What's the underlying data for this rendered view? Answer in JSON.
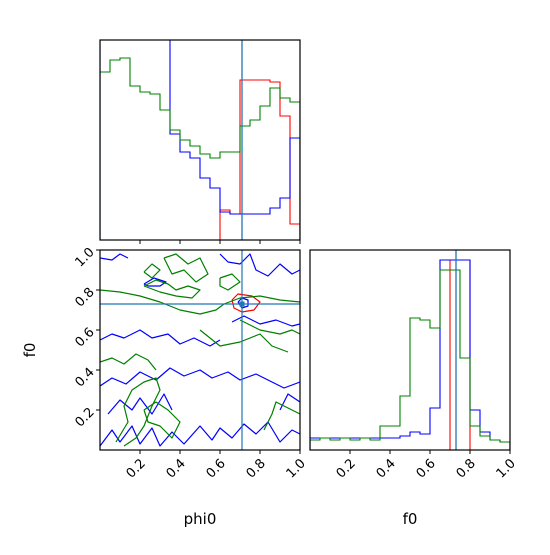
{
  "chart_data": {
    "type": "corner",
    "parameters": [
      "phi0",
      "f0"
    ],
    "axis_labels": {
      "x_bottom_left": "phi0",
      "x_bottom_right": "f0",
      "y_left": "f0"
    },
    "xlim": [
      0,
      1.0
    ],
    "ylim": [
      0,
      1.0
    ],
    "tick_labels": [
      "0.2",
      "0.4",
      "0.6",
      "0.8",
      "1.0"
    ],
    "colors": {
      "red": "#ff0000",
      "blue": "#0000ff",
      "green": "#008000",
      "truth": "#1f77b4",
      "frame": "#000000"
    },
    "truth": {
      "phi0": 0.71,
      "f0": 0.73
    },
    "phi0_hist": {
      "bin_edges": [
        0,
        0.05,
        0.1,
        0.15,
        0.2,
        0.25,
        0.3,
        0.35,
        0.4,
        0.45,
        0.5,
        0.55,
        0.6,
        0.65,
        0.7,
        0.75,
        0.8,
        0.85,
        0.9,
        0.95,
        1.0
      ],
      "series": [
        {
          "color": "red",
          "counts": [
            0,
            0,
            0,
            0,
            0,
            0,
            0,
            0,
            0,
            0,
            0,
            0,
            0.15,
            0.13,
            0.8,
            0.8,
            0.8,
            0.79,
            0.62,
            0.08
          ]
        },
        {
          "color": "blue",
          "counts": [
            1.2,
            1.2,
            1.2,
            1.2,
            1.2,
            1.2,
            1.2,
            0.53,
            0.44,
            0.41,
            0.31,
            0.26,
            0.14,
            0.13,
            0.13,
            0.13,
            0.13,
            0.16,
            0.21,
            0.51
          ]
        },
        {
          "color": "green",
          "counts": [
            0.84,
            0.9,
            0.91,
            0.77,
            0.74,
            0.73,
            0.65,
            0.55,
            0.5,
            0.47,
            0.43,
            0.41,
            0.44,
            0.44,
            0.57,
            0.6,
            0.67,
            0.76,
            0.71,
            0.69
          ]
        }
      ]
    },
    "f0_hist": {
      "bin_edges": [
        0,
        0.05,
        0.1,
        0.15,
        0.2,
        0.25,
        0.3,
        0.35,
        0.4,
        0.45,
        0.5,
        0.55,
        0.6,
        0.65,
        0.7,
        0.75,
        0.8,
        0.85,
        0.9,
        0.95,
        1.0
      ],
      "series": [
        {
          "color": "red",
          "counts": [
            0,
            0,
            0,
            0,
            0,
            0,
            0,
            0,
            0,
            0,
            0,
            0,
            0,
            0,
            0.95,
            0.95,
            0,
            0,
            0,
            0
          ]
        },
        {
          "color": "blue",
          "counts": [
            0.06,
            0.06,
            0.06,
            0.06,
            0.06,
            0.06,
            0.06,
            0.06,
            0.06,
            0.07,
            0.09,
            0.08,
            0.21,
            0.95,
            0.95,
            0.95,
            0.2,
            0.09,
            0.05,
            0.04
          ]
        },
        {
          "color": "green",
          "counts": [
            0.05,
            0.06,
            0.05,
            0.06,
            0.05,
            0.06,
            0.05,
            0.12,
            0.12,
            0.27,
            0.66,
            0.65,
            0.61,
            0.9,
            0.9,
            0.46,
            0.12,
            0.07,
            0.05,
            0.04
          ]
        }
      ]
    },
    "contours_2d": [
      {
        "color": "red",
        "paths": [
          [
            [
              0.66,
              0.75
            ],
            [
              0.69,
              0.78
            ],
            [
              0.76,
              0.77
            ],
            [
              0.8,
              0.74
            ],
            [
              0.77,
              0.7
            ],
            [
              0.71,
              0.69
            ],
            [
              0.67,
              0.71
            ],
            [
              0.66,
              0.75
            ]
          ]
        ]
      },
      {
        "color": "blue",
        "paths": [
          [
            [
              0.22,
              0.83
            ],
            [
              0.27,
              0.86
            ],
            [
              0.33,
              0.84
            ],
            [
              0.3,
              0.82
            ],
            [
              0.24,
              0.82
            ],
            [
              0.22,
              0.83
            ]
          ],
          [
            [
              0.69,
              0.74
            ],
            [
              0.71,
              0.76
            ],
            [
              0.74,
              0.75
            ],
            [
              0.74,
              0.72
            ],
            [
              0.71,
              0.71
            ],
            [
              0.69,
              0.74
            ]
          ],
          [
            [
              0.0,
              0.96
            ],
            [
              0.06,
              0.95
            ],
            [
              0.1,
              0.98
            ],
            [
              0.14,
              0.96
            ]
          ],
          [
            [
              0.6,
              0.98
            ],
            [
              0.64,
              0.94
            ],
            [
              0.7,
              0.93
            ],
            [
              0.75,
              0.98
            ],
            [
              0.78,
              0.9
            ],
            [
              0.84,
              0.87
            ],
            [
              0.9,
              0.93
            ],
            [
              0.96,
              0.88
            ],
            [
              1.0,
              0.9
            ]
          ],
          [
            [
              0.0,
              0.55
            ],
            [
              0.06,
              0.58
            ],
            [
              0.12,
              0.56
            ],
            [
              0.2,
              0.6
            ],
            [
              0.26,
              0.56
            ],
            [
              0.34,
              0.58
            ],
            [
              0.4,
              0.53
            ],
            [
              0.47,
              0.56
            ],
            [
              0.55,
              0.52
            ],
            [
              0.6,
              0.55
            ]
          ],
          [
            [
              0.66,
              0.64
            ],
            [
              0.72,
              0.67
            ],
            [
              0.8,
              0.63
            ],
            [
              0.88,
              0.65
            ],
            [
              0.96,
              0.62
            ],
            [
              1.0,
              0.63
            ]
          ],
          [
            [
              0.0,
              0.32
            ],
            [
              0.06,
              0.36
            ],
            [
              0.13,
              0.33
            ],
            [
              0.2,
              0.39
            ],
            [
              0.28,
              0.35
            ],
            [
              0.35,
              0.41
            ],
            [
              0.42,
              0.37
            ],
            [
              0.5,
              0.4
            ],
            [
              0.56,
              0.36
            ],
            [
              0.64,
              0.39
            ],
            [
              0.7,
              0.35
            ],
            [
              0.78,
              0.38
            ],
            [
              0.86,
              0.34
            ],
            [
              0.92,
              0.31
            ],
            [
              1.0,
              0.34
            ]
          ],
          [
            [
              0.0,
              0.02
            ],
            [
              0.06,
              0.1
            ],
            [
              0.1,
              0.04
            ],
            [
              0.16,
              0.12
            ],
            [
              0.2,
              0.03
            ],
            [
              0.26,
              0.11
            ],
            [
              0.3,
              0.02
            ],
            [
              0.36,
              0.09
            ],
            [
              0.42,
              0.03
            ],
            [
              0.5,
              0.12
            ],
            [
              0.56,
              0.05
            ],
            [
              0.6,
              0.11
            ],
            [
              0.66,
              0.06
            ],
            [
              0.72,
              0.13
            ],
            [
              0.78,
              0.08
            ],
            [
              0.84,
              0.14
            ],
            [
              0.9,
              0.04
            ],
            [
              0.96,
              0.1
            ],
            [
              1.0,
              0.08
            ]
          ],
          [
            [
              0.04,
              0.18
            ],
            [
              0.1,
              0.25
            ],
            [
              0.16,
              0.2
            ],
            [
              0.2,
              0.26
            ],
            [
              0.26,
              0.18
            ],
            [
              0.32,
              0.28
            ],
            [
              0.36,
              0.2
            ]
          ],
          [
            [
              0.9,
              0.2
            ],
            [
              0.94,
              0.28
            ],
            [
              1.0,
              0.24
            ]
          ]
        ]
      },
      {
        "color": "green",
        "paths": [
          [
            [
              0.22,
              0.82
            ],
            [
              0.28,
              0.85
            ],
            [
              0.34,
              0.83
            ],
            [
              0.38,
              0.8
            ],
            [
              0.44,
              0.82
            ],
            [
              0.5,
              0.8
            ],
            [
              0.46,
              0.76
            ],
            [
              0.38,
              0.77
            ],
            [
              0.3,
              0.79
            ],
            [
              0.22,
              0.82
            ]
          ],
          [
            [
              0.32,
              0.96
            ],
            [
              0.38,
              0.98
            ],
            [
              0.44,
              0.93
            ],
            [
              0.5,
              0.96
            ],
            [
              0.54,
              0.88
            ],
            [
              0.48,
              0.84
            ],
            [
              0.42,
              0.9
            ],
            [
              0.36,
              0.88
            ],
            [
              0.32,
              0.96
            ]
          ],
          [
            [
              0.22,
              0.89
            ],
            [
              0.26,
              0.93
            ],
            [
              0.3,
              0.9
            ],
            [
              0.26,
              0.86
            ],
            [
              0.22,
              0.89
            ]
          ],
          [
            [
              0.0,
              0.8
            ],
            [
              0.1,
              0.79
            ],
            [
              0.2,
              0.77
            ],
            [
              0.3,
              0.74
            ],
            [
              0.4,
              0.7
            ],
            [
              0.5,
              0.68
            ],
            [
              0.58,
              0.7
            ],
            [
              0.62,
              0.73
            ],
            [
              0.7,
              0.76
            ],
            [
              0.8,
              0.77
            ],
            [
              0.9,
              0.75
            ],
            [
              1.0,
              0.74
            ]
          ],
          [
            [
              0.6,
              0.86
            ],
            [
              0.66,
              0.88
            ],
            [
              0.7,
              0.84
            ],
            [
              0.64,
              0.8
            ],
            [
              0.6,
              0.82
            ],
            [
              0.6,
              0.86
            ]
          ],
          [
            [
              0.5,
              0.6
            ],
            [
              0.6,
              0.52
            ],
            [
              0.7,
              0.54
            ],
            [
              0.8,
              0.58
            ],
            [
              0.86,
              0.52
            ],
            [
              0.94,
              0.49
            ]
          ],
          [
            [
              0.7,
              0.65
            ],
            [
              0.8,
              0.6
            ],
            [
              0.9,
              0.58
            ],
            [
              0.96,
              0.6
            ],
            [
              1.0,
              0.58
            ]
          ],
          [
            [
              0.08,
              0.04
            ],
            [
              0.14,
              0.14
            ],
            [
              0.12,
              0.22
            ],
            [
              0.16,
              0.3
            ],
            [
              0.22,
              0.34
            ],
            [
              0.28,
              0.36
            ],
            [
              0.3,
              0.3
            ],
            [
              0.26,
              0.22
            ],
            [
              0.22,
              0.12
            ],
            [
              0.18,
              0.06
            ],
            [
              0.12,
              0.02
            ]
          ],
          [
            [
              0.22,
              0.2
            ],
            [
              0.28,
              0.24
            ],
            [
              0.34,
              0.2
            ],
            [
              0.4,
              0.14
            ],
            [
              0.36,
              0.06
            ],
            [
              0.3,
              0.12
            ],
            [
              0.24,
              0.14
            ],
            [
              0.22,
              0.2
            ]
          ],
          [
            [
              0.82,
              0.1
            ],
            [
              0.86,
              0.18
            ],
            [
              0.88,
              0.24
            ],
            [
              0.92,
              0.22
            ],
            [
              0.96,
              0.2
            ],
            [
              1.0,
              0.18
            ]
          ],
          [
            [
              0.0,
              0.44
            ],
            [
              0.06,
              0.46
            ],
            [
              0.12,
              0.43
            ],
            [
              0.18,
              0.48
            ],
            [
              0.24,
              0.45
            ],
            [
              0.28,
              0.4
            ]
          ]
        ]
      }
    ]
  }
}
